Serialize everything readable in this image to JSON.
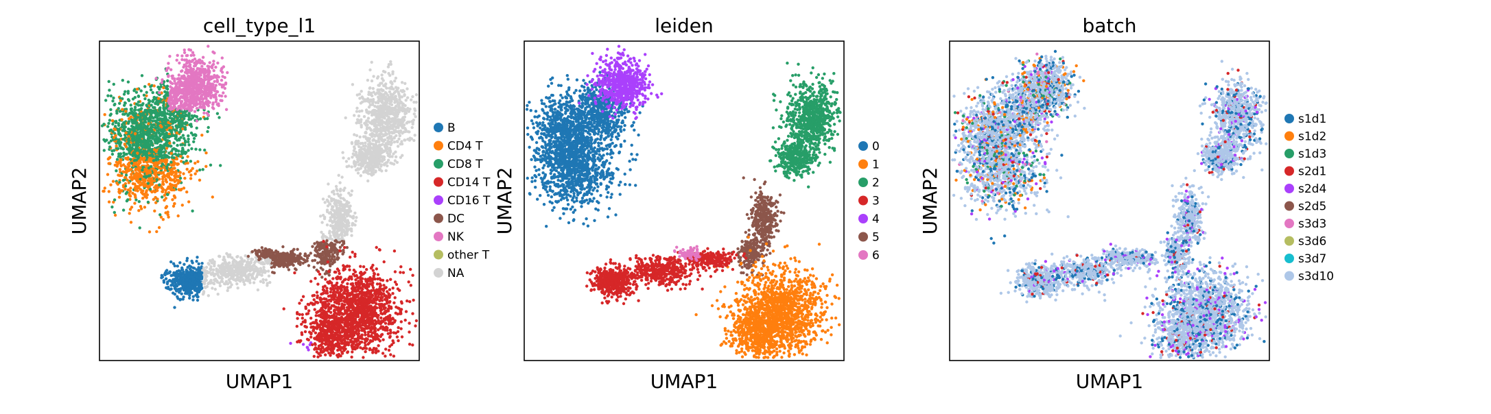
{
  "chart_data": [
    {
      "type": "scatter",
      "title": "cell_type_l1",
      "xlabel": "UMAP1",
      "ylabel": "UMAP2",
      "grid": false,
      "legend_placement": "right",
      "legend": [
        {
          "label": "B",
          "color": "#1f77b4"
        },
        {
          "label": "CD4 T",
          "color": "#ff7f0e"
        },
        {
          "label": "CD8 T",
          "color": "#279e68"
        },
        {
          "label": "CD14 T",
          "color": "#d62728"
        },
        {
          "label": "CD16 T",
          "color": "#aa40fc"
        },
        {
          "label": "DC",
          "color": "#8c564b"
        },
        {
          "label": "NK",
          "color": "#e377c2"
        },
        {
          "label": "other T",
          "color": "#b5bd61"
        },
        {
          "label": "NA",
          "color": "#d3d3d3"
        }
      ]
    },
    {
      "type": "scatter",
      "title": "leiden",
      "xlabel": "UMAP1",
      "ylabel": "UMAP2",
      "grid": false,
      "legend_placement": "right",
      "legend": [
        {
          "label": "0",
          "color": "#1f77b4"
        },
        {
          "label": "1",
          "color": "#ff7f0e"
        },
        {
          "label": "2",
          "color": "#279e68"
        },
        {
          "label": "3",
          "color": "#d62728"
        },
        {
          "label": "4",
          "color": "#aa40fc"
        },
        {
          "label": "5",
          "color": "#8c564b"
        },
        {
          "label": "6",
          "color": "#e377c2"
        }
      ]
    },
    {
      "type": "scatter",
      "title": "batch",
      "xlabel": "UMAP1",
      "ylabel": "UMAP2",
      "grid": false,
      "legend_placement": "right",
      "legend": [
        {
          "label": "s1d1",
          "color": "#1f77b4"
        },
        {
          "label": "s1d2",
          "color": "#ff7f0e"
        },
        {
          "label": "s1d3",
          "color": "#279e68"
        },
        {
          "label": "s2d1",
          "color": "#d62728"
        },
        {
          "label": "s2d4",
          "color": "#aa40fc"
        },
        {
          "label": "s2d5",
          "color": "#8c564b"
        },
        {
          "label": "s3d3",
          "color": "#e377c2"
        },
        {
          "label": "s3d6",
          "color": "#b5bd61"
        },
        {
          "label": "s3d7",
          "color": "#17becf"
        },
        {
          "label": "s3d10",
          "color": "#aec7e8"
        }
      ]
    }
  ]
}
